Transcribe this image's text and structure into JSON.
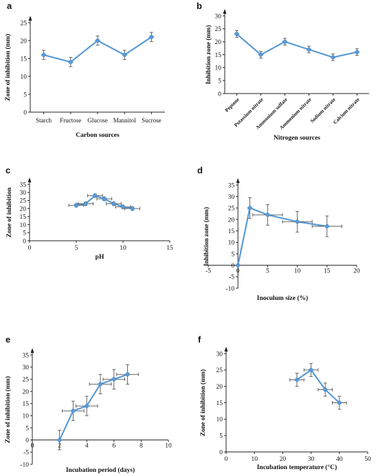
{
  "chart_data": [
    {
      "id": "a",
      "panel_letter": "a",
      "type": "line",
      "categories": [
        "Starch",
        "Fructose",
        "Glucose",
        "Mannitol",
        "Sucrose"
      ],
      "values": [
        16,
        14,
        20,
        16,
        21
      ],
      "y_errors": [
        1.3,
        1.3,
        1.3,
        1.3,
        1.3
      ],
      "xlabel": "Carbon sources",
      "ylabel": "Zone of inhibition (mm)",
      "ylim": [
        0,
        25
      ],
      "yticks": [
        0,
        5,
        10,
        15,
        20,
        25
      ],
      "grid": false
    },
    {
      "id": "b",
      "panel_letter": "b",
      "type": "line",
      "categories": [
        "Peptone",
        "Potassium nitrate",
        "Ammonium sulfate",
        "Ammonium nitrate",
        "Sodium nitrate",
        "Calcium nitrate"
      ],
      "values": [
        23,
        15,
        20,
        17,
        14,
        16
      ],
      "y_errors": [
        1.3,
        1.3,
        1.3,
        1.3,
        1.3,
        1.3
      ],
      "xlabel": "Nitrogen sources",
      "ylabel": "Inhibition zone (mm)",
      "ylim": [
        0,
        30
      ],
      "yticks": [
        0,
        5,
        10,
        15,
        20,
        25,
        30
      ],
      "grid": false
    },
    {
      "id": "c",
      "panel_letter": "c",
      "type": "scatter",
      "x": [
        5,
        6,
        7,
        8,
        9,
        10,
        11
      ],
      "y": [
        22,
        23,
        28,
        26,
        23,
        21,
        20
      ],
      "x_errors": [
        0.8,
        0.8,
        0.8,
        0.8,
        0.8,
        0.8,
        0.8
      ],
      "y_errors": [
        1,
        1,
        1,
        1,
        1,
        1,
        1
      ],
      "xlabel": "pH",
      "ylabel": "Zone of inhibition",
      "xlim": [
        0,
        15
      ],
      "ylim": [
        0,
        35
      ],
      "xticks": [
        0,
        5,
        10,
        15
      ],
      "yticks": [
        0,
        5,
        10,
        15,
        20,
        25,
        30,
        35
      ],
      "grid": false
    },
    {
      "id": "d",
      "panel_letter": "d",
      "type": "scatter",
      "x": [
        0,
        2,
        5,
        10,
        15
      ],
      "y": [
        0,
        25,
        22,
        19,
        17
      ],
      "x_errors": [
        0,
        0,
        2.5,
        2.5,
        2.5
      ],
      "y_errors": [
        0,
        4.5,
        4.5,
        4.5,
        4.5
      ],
      "xlabel": "Inoculum size (%)",
      "ylabel": "Inhibition zone (mm)",
      "xlim": [
        -5,
        20
      ],
      "ylim": [
        -10,
        35
      ],
      "xticks": [
        -5,
        0,
        5,
        10,
        15,
        20
      ],
      "yticks": [
        -10,
        -5,
        0,
        5,
        10,
        15,
        20,
        25,
        30,
        35
      ],
      "grid": false
    },
    {
      "id": "e",
      "panel_letter": "e",
      "type": "scatter",
      "x": [
        2,
        3,
        4,
        5,
        6,
        7
      ],
      "y": [
        0,
        12,
        14,
        23,
        25,
        27
      ],
      "x_errors": [
        0,
        0.8,
        0.8,
        0.8,
        0.8,
        0.8
      ],
      "y_errors": [
        4,
        4,
        4,
        4,
        4,
        4
      ],
      "xlabel": "Incubation period (days)",
      "ylabel": "Zone of inhibition (mm)",
      "xlim": [
        0,
        10
      ],
      "ylim": [
        -10,
        35
      ],
      "xticks": [
        0,
        2,
        4,
        6,
        8,
        10
      ],
      "yticks": [
        -10,
        -5,
        0,
        5,
        10,
        15,
        20,
        25,
        30,
        35
      ],
      "grid": false
    },
    {
      "id": "f",
      "panel_letter": "f",
      "type": "scatter",
      "x": [
        25,
        30,
        35,
        40
      ],
      "y": [
        22,
        25,
        19,
        15
      ],
      "x_errors": [
        2.5,
        2.5,
        2.5,
        2.5
      ],
      "y_errors": [
        2,
        2,
        2,
        2
      ],
      "xlabel": "Incubation temperature (°C)",
      "ylabel": "Zone of inhibition (mm)",
      "xlim": [
        0,
        50
      ],
      "ylim": [
        0,
        30
      ],
      "xticks": [
        0,
        10,
        20,
        30,
        40,
        50
      ],
      "yticks": [
        0,
        5,
        10,
        15,
        20,
        25,
        30
      ],
      "grid": false
    }
  ],
  "colors": {
    "series": "#5b9bd5",
    "error_bars": "#555555",
    "axes": "#222222"
  }
}
